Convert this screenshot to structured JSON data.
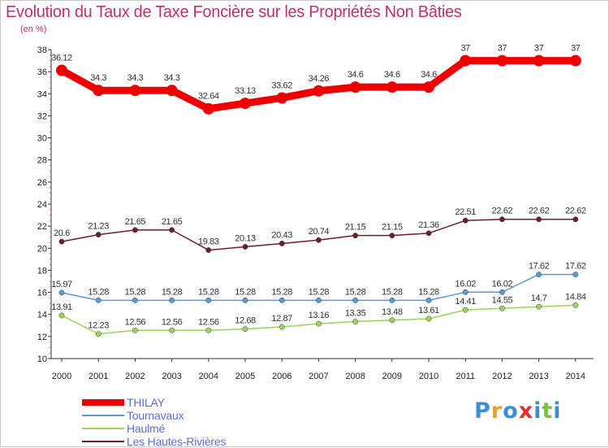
{
  "title": "Evolution du Taux de Taxe Foncière sur les Propriétés Non Bâties",
  "unit": "(en %)",
  "logo": {
    "text": "Proxiti",
    "colors": [
      "#3a8fd8",
      "#f0a020",
      "#3a8fd8",
      "#e03030",
      "#3a8fd8",
      "#7ac043",
      "#3a8fd8"
    ]
  },
  "chart_data": {
    "type": "line",
    "title": "Evolution du Taux de Taxe Foncière sur les Propriétés Non Bâties",
    "ylabel": "(en %)",
    "x": [
      "2000",
      "2001",
      "2002",
      "2003",
      "2004",
      "2005",
      "2006",
      "2007",
      "2008",
      "2009",
      "2010",
      "2011",
      "2012",
      "2013",
      "2014"
    ],
    "ylim": [
      10,
      38
    ],
    "yticks": [
      "10",
      "12",
      "14",
      "16",
      "18",
      "20",
      "22",
      "24",
      "26",
      "28",
      "30",
      "32",
      "34",
      "36",
      "38"
    ],
    "grid": false,
    "legend_position": "bottom-left",
    "series": [
      {
        "name": "THILAY",
        "color": "#ee0000",
        "values": [
          36.12,
          34.3,
          34.3,
          34.3,
          32.64,
          33.13,
          33.62,
          34.26,
          34.6,
          34.6,
          34.6,
          37,
          37,
          37,
          37
        ],
        "labels": [
          "36.12",
          "34.3",
          "34.3",
          "34.3",
          "32.64",
          "33.13",
          "33.62",
          "34.26",
          "34.6",
          "34.6",
          "34.6",
          "37",
          "37",
          "37",
          "37"
        ]
      },
      {
        "name": "Tournavaux",
        "color": "#5b9bd5",
        "values": [
          15.97,
          15.28,
          15.28,
          15.28,
          15.28,
          15.28,
          15.28,
          15.28,
          15.28,
          15.28,
          15.28,
          16.02,
          16.02,
          17.62,
          17.62
        ],
        "labels": [
          "15.97",
          "15.28",
          "15.28",
          "15.28",
          "15.28",
          "15.28",
          "15.28",
          "15.28",
          "15.28",
          "15.28",
          "15.28",
          "16.02",
          "16.02",
          "17.62",
          "17.62"
        ]
      },
      {
        "name": "Haulmé",
        "color": "#9ad45a",
        "values": [
          13.91,
          12.23,
          12.56,
          12.56,
          12.56,
          12.68,
          12.87,
          13.16,
          13.35,
          13.48,
          13.61,
          14.41,
          14.55,
          14.7,
          14.84
        ],
        "labels": [
          "13.91",
          "12.23",
          "12.56",
          "12.56",
          "12.56",
          "12.68",
          "12.87",
          "13.16",
          "13.35",
          "13.48",
          "13.61",
          "14.41",
          "14.55",
          "14.7",
          "14.84"
        ]
      },
      {
        "name": "Les Hautes-Rivières",
        "color": "#6b1f2a",
        "values": [
          20.6,
          21.23,
          21.65,
          21.65,
          19.83,
          20.13,
          20.43,
          20.74,
          21.15,
          21.15,
          21.36,
          22.51,
          22.62,
          22.62,
          22.62
        ],
        "labels": [
          "20.6",
          "21.23",
          "21.65",
          "21.65",
          "19.83",
          "20.13",
          "20.43",
          "20.74",
          "21.15",
          "21.15",
          "21.36",
          "22.51",
          "22.62",
          "22.62",
          "22.62"
        ]
      }
    ]
  }
}
